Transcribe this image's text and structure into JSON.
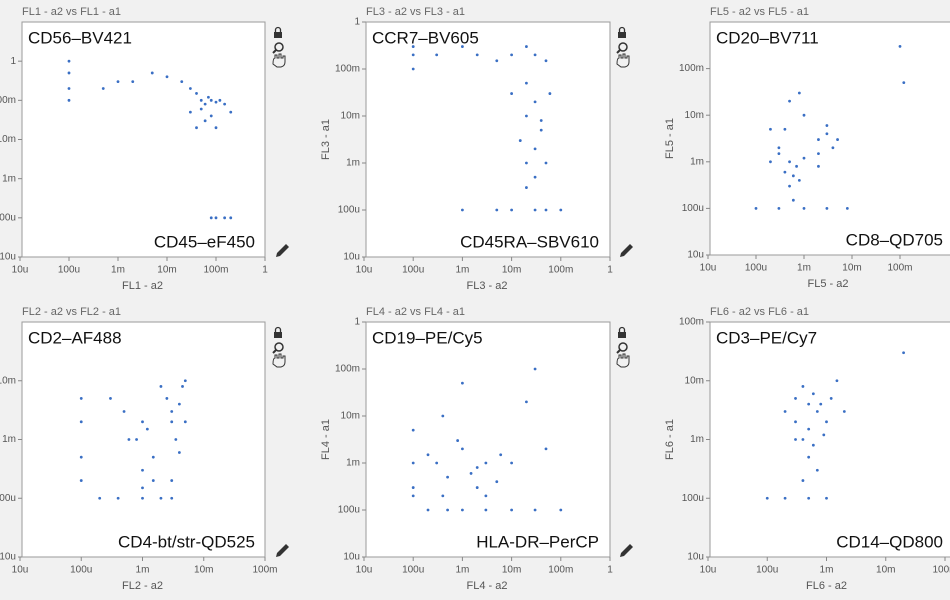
{
  "chart_data": [
    {
      "type": "scatter",
      "title": "FL1 - a2 vs FL1 - a1",
      "x_label": "FL1 - a2",
      "y_marker": "CD56–BV421",
      "x_marker": "CD45–eF450",
      "log_scale": true,
      "color": "#3a6fc4",
      "xlim": [
        1e-05,
        1
      ],
      "ylim": [
        1e-05,
        10
      ],
      "xticks": [
        {
          "value": 1e-05,
          "label": "10u"
        },
        {
          "value": 0.0001,
          "label": "100u"
        },
        {
          "value": 0.001,
          "label": "1m"
        },
        {
          "value": 0.01,
          "label": "10m"
        },
        {
          "value": 0.1,
          "label": "100m"
        },
        1
      ],
      "yticks": [
        {
          "value": 1e-05,
          "label": "10u"
        },
        {
          "value": 0.0001,
          "label": "100u"
        },
        {
          "value": 0.001,
          "label": "1m"
        },
        {
          "value": 0.01,
          "label": "10m"
        },
        {
          "value": 0.1,
          "label": "100m"
        },
        1
      ],
      "x": [
        0.0001,
        0.0001,
        0.0001,
        0.0001,
        0.002,
        0.005,
        0.01,
        0.02,
        0.03,
        0.04,
        0.05,
        0.06,
        0.07,
        0.08,
        0.1,
        0.12,
        0.15,
        0.2,
        0.03,
        0.05,
        0.08,
        0.04,
        0.06,
        0.1,
        0.0005,
        0.001,
        0.2,
        0.1,
        0.15,
        0.08
      ],
      "y": [
        1,
        0.5,
        0.2,
        0.1,
        0.3,
        0.5,
        0.4,
        0.3,
        0.2,
        0.15,
        0.1,
        0.08,
        0.12,
        0.1,
        0.09,
        0.1,
        0.08,
        0.05,
        0.05,
        0.06,
        0.04,
        0.02,
        0.03,
        0.02,
        0.2,
        0.3,
        0.0001,
        0.0001,
        0.0001,
        0.0001
      ]
    },
    {
      "type": "scatter",
      "title": "FL3 - a2 vs FL3 - a1",
      "x_label": "FL3 - a2",
      "y_label": "FL3 - a1",
      "y_marker": "CCR7–BV605",
      "x_marker": "CD45RA–SBV610",
      "log_scale": true,
      "color": "#3a6fc4",
      "xlim": [
        1e-05,
        1
      ],
      "ylim": [
        1e-05,
        1
      ],
      "xticks": [
        {
          "value": 1e-05,
          "label": "10u"
        },
        {
          "value": 0.0001,
          "label": "100u"
        },
        {
          "value": 0.001,
          "label": "1m"
        },
        {
          "value": 0.01,
          "label": "10m"
        },
        {
          "value": 0.1,
          "label": "100m"
        },
        1
      ],
      "yticks": [
        {
          "value": 1e-05,
          "label": "10u"
        },
        {
          "value": 0.0001,
          "label": "100u"
        },
        {
          "value": 0.001,
          "label": "1m"
        },
        {
          "value": 0.01,
          "label": "10m"
        },
        {
          "value": 0.1,
          "label": "100m"
        },
        1
      ],
      "x": [
        0.0001,
        0.0001,
        0.0001,
        0.0003,
        0.001,
        0.002,
        0.005,
        0.01,
        0.02,
        0.03,
        0.05,
        0.02,
        0.03,
        0.02,
        0.04,
        0.03,
        0.02,
        0.05,
        0.03,
        0.02,
        0.001,
        0.005,
        0.01,
        0.03,
        0.05,
        0.1,
        0.01,
        0.04,
        0.015,
        0.06
      ],
      "y": [
        0.1,
        0.2,
        0.3,
        0.2,
        0.3,
        0.2,
        0.15,
        0.2,
        0.3,
        0.2,
        0.15,
        0.05,
        0.02,
        0.01,
        0.005,
        0.002,
        0.001,
        0.001,
        0.0005,
        0.0003,
        0.0001,
        0.0001,
        0.0001,
        0.0001,
        0.0001,
        0.0001,
        0.03,
        0.008,
        0.003,
        0.03
      ]
    },
    {
      "type": "scatter",
      "title": "FL5 - a2 vs FL5 - a1",
      "x_label": "FL5 - a2",
      "y_label": "FL5 - a1",
      "y_marker": "CD20–BV711",
      "x_marker": "CD8–QD705",
      "log_scale": true,
      "color": "#3a6fc4",
      "xlim": [
        1e-05,
        1
      ],
      "ylim": [
        1e-05,
        1
      ],
      "xticks": [
        {
          "value": 1e-05,
          "label": "10u"
        },
        {
          "value": 0.0001,
          "label": "100u"
        },
        {
          "value": 0.001,
          "label": "1m"
        },
        {
          "value": 0.01,
          "label": "10m"
        },
        {
          "value": 0.1,
          "label": "100m"
        }
      ],
      "yticks": [
        {
          "value": 1e-05,
          "label": "10u"
        },
        {
          "value": 0.0001,
          "label": "100u"
        },
        {
          "value": 0.001,
          "label": "1m"
        },
        {
          "value": 0.01,
          "label": "10m"
        },
        {
          "value": 0.1,
          "label": "100m"
        }
      ],
      "x": [
        0.0002,
        0.0003,
        0.0005,
        0.0007,
        0.001,
        0.0004,
        0.0006,
        0.0003,
        0.0008,
        0.0005,
        0.002,
        0.003,
        0.004,
        0.003,
        0.005,
        0.002,
        0.0001,
        0.0003,
        0.001,
        0.003,
        0.008,
        0.0005,
        0.001,
        0.0002,
        0.0008,
        0.0006,
        0.1,
        0.12,
        0.002,
        0.0004
      ],
      "y": [
        0.001,
        0.0015,
        0.001,
        0.0008,
        0.0012,
        0.0006,
        0.0005,
        0.002,
        0.0004,
        0.0003,
        0.003,
        0.004,
        0.002,
        0.006,
        0.003,
        0.0015,
        0.0001,
        0.0001,
        0.0001,
        0.0001,
        0.0001,
        0.02,
        0.01,
        0.005,
        0.03,
        0.00015,
        0.3,
        0.05,
        0.0008,
        0.005
      ]
    },
    {
      "type": "scatter",
      "title": "FL2 - a2 vs FL2 - a1",
      "x_label": "FL2 - a2",
      "y_marker": "CD2–AF488",
      "x_marker": "CD4-bt/str-QD525",
      "log_scale": true,
      "color": "#3a6fc4",
      "xlim": [
        1e-05,
        0.1
      ],
      "ylim": [
        1e-05,
        0.1
      ],
      "xticks": [
        {
          "value": 1e-05,
          "label": "10u"
        },
        {
          "value": 0.0001,
          "label": "100u"
        },
        {
          "value": 0.001,
          "label": "1m"
        },
        {
          "value": 0.01,
          "label": "10m"
        },
        {
          "value": 0.1,
          "label": "100m"
        }
      ],
      "yticks": [
        {
          "value": 1e-05,
          "label": "10u"
        },
        {
          "value": 0.0001,
          "label": "100u"
        },
        {
          "value": 0.001,
          "label": "1m"
        },
        {
          "value": 0.01,
          "label": "10m"
        }
      ],
      "x": [
        0.0001,
        0.0001,
        0.0001,
        0.0001,
        0.0005,
        0.001,
        0.0008,
        0.0012,
        0.0015,
        0.001,
        0.0006,
        0.003,
        0.004,
        0.003,
        0.0025,
        0.005,
        0.0035,
        0.004,
        0.0002,
        0.0004,
        0.001,
        0.002,
        0.003,
        0.0003,
        0.002,
        0.0045,
        0.0015,
        0.001,
        0.003,
        0.005
      ],
      "y": [
        0.005,
        0.002,
        0.0005,
        0.0002,
        0.003,
        0.002,
        0.001,
        0.0015,
        0.0005,
        0.0003,
        0.001,
        0.003,
        0.004,
        0.002,
        0.005,
        0.002,
        0.001,
        0.0006,
        0.0001,
        0.0001,
        0.0001,
        0.0001,
        0.0001,
        0.005,
        0.008,
        0.008,
        0.0002,
        0.00015,
        0.0002,
        0.01
      ]
    },
    {
      "type": "scatter",
      "title": "FL4 - a2 vs FL4 - a1",
      "x_label": "FL4 - a2",
      "y_label": "FL4 - a1",
      "y_marker": "CD19–PE/Cy5",
      "x_marker": "HLA-DR–PerCP",
      "log_scale": true,
      "color": "#3a6fc4",
      "xlim": [
        1e-05,
        1
      ],
      "ylim": [
        1e-05,
        1
      ],
      "xticks": [
        {
          "value": 1e-05,
          "label": "10u"
        },
        {
          "value": 0.0001,
          "label": "100u"
        },
        {
          "value": 0.001,
          "label": "1m"
        },
        {
          "value": 0.01,
          "label": "10m"
        },
        {
          "value": 0.1,
          "label": "100m"
        },
        1
      ],
      "yticks": [
        {
          "value": 1e-05,
          "label": "10u"
        },
        {
          "value": 0.0001,
          "label": "100u"
        },
        {
          "value": 0.001,
          "label": "1m"
        },
        {
          "value": 0.01,
          "label": "10m"
        },
        {
          "value": 0.1,
          "label": "100m"
        },
        1
      ],
      "x": [
        0.0001,
        0.0001,
        0.0001,
        0.0001,
        0.0002,
        0.0005,
        0.001,
        0.003,
        0.01,
        0.03,
        0.1,
        0.0003,
        0.0005,
        0.001,
        0.002,
        0.003,
        0.005,
        0.0004,
        0.0008,
        0.0015,
        0.002,
        0.006,
        0.02,
        0.03,
        0.0004,
        0.001,
        0.01,
        0.05,
        0.003,
        0.0002
      ],
      "y": [
        0.005,
        0.001,
        0.0003,
        0.0002,
        0.0001,
        0.0001,
        0.0001,
        0.0001,
        0.0001,
        0.0001,
        0.0001,
        0.001,
        0.0005,
        0.002,
        0.0008,
        0.001,
        0.0004,
        0.0002,
        0.003,
        0.0006,
        0.0003,
        0.0015,
        0.02,
        0.1,
        0.01,
        0.05,
        0.001,
        0.002,
        0.0002,
        0.0015
      ]
    },
    {
      "type": "scatter",
      "title": "FL6 - a2 vs FL6 - a1",
      "x_label": "FL6 - a2",
      "y_label": "FL6 - a1",
      "y_marker": "CD3–PE/Cy7",
      "x_marker": "CD14–QD800",
      "log_scale": true,
      "color": "#3a6fc4",
      "xlim": [
        1e-05,
        0.1
      ],
      "ylim": [
        1e-05,
        0.1
      ],
      "xticks": [
        {
          "value": 1e-05,
          "label": "10u"
        },
        {
          "value": 0.0001,
          "label": "100u"
        },
        {
          "value": 0.001,
          "label": "1m"
        },
        {
          "value": 0.01,
          "label": "10m"
        },
        {
          "value": 0.1,
          "label": "100m"
        }
      ],
      "yticks": [
        {
          "value": 1e-05,
          "label": "10u"
        },
        {
          "value": 0.0001,
          "label": "100u"
        },
        {
          "value": 0.001,
          "label": "1m"
        },
        {
          "value": 0.01,
          "label": "10m"
        },
        {
          "value": 0.1,
          "label": "100m"
        }
      ],
      "x": [
        0.0002,
        0.0003,
        0.0005,
        0.0007,
        0.001,
        0.0004,
        0.0006,
        0.0008,
        0.0003,
        0.0012,
        0.0004,
        0.0006,
        0.0005,
        0.0007,
        0.0004,
        0.0001,
        0.0002,
        0.0005,
        0.001,
        0.0015,
        0.002,
        0.0003,
        0.02,
        0.0005,
        0.0009
      ],
      "y": [
        0.003,
        0.005,
        0.004,
        0.003,
        0.002,
        0.008,
        0.006,
        0.004,
        0.002,
        0.005,
        0.001,
        0.0008,
        0.0005,
        0.0003,
        0.0002,
        0.0001,
        0.0001,
        0.0001,
        0.0001,
        0.01,
        0.003,
        0.001,
        0.03,
        0.0015,
        0.0012
      ]
    }
  ]
}
